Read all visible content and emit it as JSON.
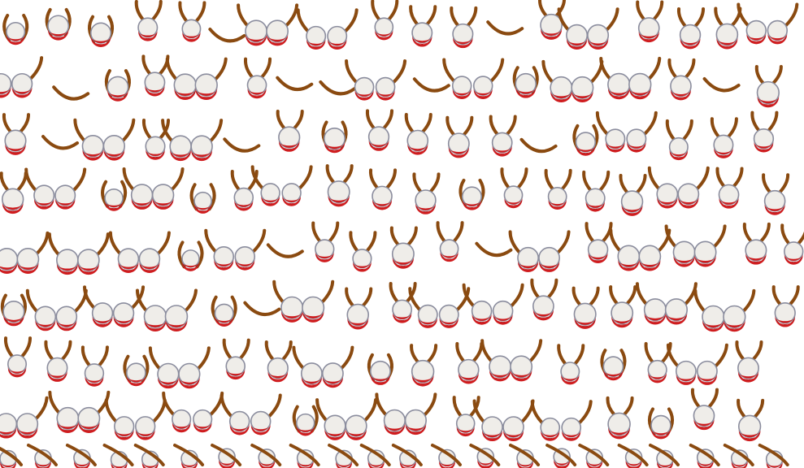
{
  "pattern": {
    "motif": "drum-with-curved-sticks",
    "rows": 8,
    "background_color": "#ffffff",
    "colors": {
      "drum_head": "#efede9",
      "drum_rim": "#8b8d9e",
      "drum_shell": "#cf1c1e",
      "drum_shell_shadow": "#a3141a",
      "stick": "#8a4a10"
    }
  }
}
